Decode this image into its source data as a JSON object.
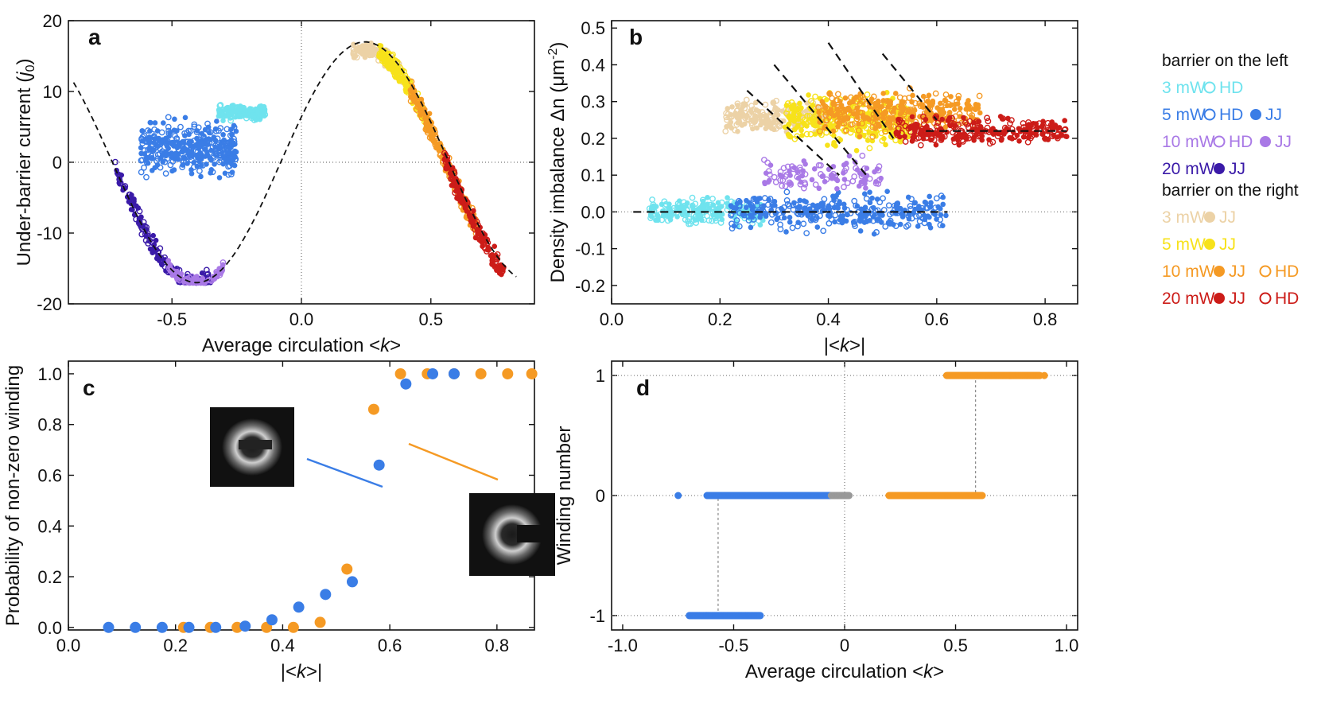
{
  "colors": {
    "cyan": "#6fe3ee",
    "blue": "#3a7de6",
    "lilac": "#a979e6",
    "navy": "#3a1aa8",
    "beige": "#ecd2a6",
    "yellow": "#f7e21a",
    "orange": "#f59a24",
    "red": "#cc1c18",
    "inset_blue": "#3a7de6",
    "inset_orange": "#f59a24",
    "grey": "#999999"
  },
  "chart_data": [
    {
      "panel": "a",
      "type": "scatter",
      "xlabel_pre": "Average circulation <",
      "xlabel_var": "k",
      "xlabel_post": ">",
      "ylabel_pre": "Under-barrier current (",
      "ylabel_var": "j",
      "ylabel_sub": "0",
      "ylabel_post": ")",
      "xlim": [
        -0.9,
        0.9
      ],
      "ylim": [
        -20,
        20
      ],
      "xticks": [
        "-0.5",
        "0.0",
        "0.5"
      ],
      "xtick_values": [
        -0.5,
        0.0,
        0.5
      ],
      "yticks": [
        "20",
        "10",
        "0",
        "-10",
        "-20"
      ],
      "ytick_values": [
        20,
        10,
        0,
        -10,
        -20
      ],
      "reference_curve": "dashed sinusoid, amplitude 17, period ~1.1, passing through (-0.85, 9) and minimum near (-0.4, -15)",
      "clusters": [
        {
          "color": "cyan",
          "x_range": [
            -0.32,
            -0.14
          ],
          "y_mean": 7,
          "y_spread": 1.5
        },
        {
          "color": "blue",
          "x_range": [
            -0.62,
            -0.25
          ],
          "y_mean": 2,
          "y_spread": 5
        },
        {
          "color": "navy",
          "x_range": [
            -0.72,
            -0.35
          ],
          "y_mean": -12,
          "y_spread": 2
        },
        {
          "color": "lilac",
          "x_range": [
            -0.52,
            -0.3
          ],
          "y_mean": -14,
          "y_spread": 1
        },
        {
          "color": "beige",
          "x_range": [
            0.2,
            0.4
          ],
          "y_mean": 15,
          "y_spread": 1.5
        },
        {
          "color": "yellow",
          "x_range": [
            0.3,
            0.5
          ],
          "y_mean": 11,
          "y_spread": 2
        },
        {
          "color": "orange",
          "x_range": [
            0.42,
            0.68
          ],
          "y_mean": 4,
          "y_spread": 2
        },
        {
          "color": "red",
          "x_range": [
            0.55,
            0.78
          ],
          "y_mean": 0,
          "y_spread": 2
        }
      ]
    },
    {
      "panel": "b",
      "type": "scatter",
      "xlabel_pre": "|<",
      "xlabel_var": "k",
      "xlabel_post": ">|",
      "ylabel_text": "Density imbalance Δn (μm",
      "ylabel_sup": "-2",
      "ylabel_post": ")",
      "xlim": [
        0.0,
        0.86
      ],
      "ylim": [
        -0.25,
        0.52
      ],
      "xticks": [
        "0.0",
        "0.2",
        "0.4",
        "0.6",
        "0.8"
      ],
      "xtick_values": [
        0.0,
        0.2,
        0.4,
        0.6,
        0.8
      ],
      "yticks": [
        "0.5",
        "0.4",
        "0.3",
        "0.2",
        "0.1",
        "0.0",
        "-0.1",
        "-0.2"
      ],
      "ytick_values": [
        0.5,
        0.4,
        0.3,
        0.2,
        0.1,
        0.0,
        -0.1,
        -0.2
      ],
      "clusters": [
        {
          "color": "cyan",
          "x_range": [
            0.07,
            0.28
          ],
          "y_mean": 0.0,
          "y_spread": 0.05
        },
        {
          "color": "blue",
          "x_range": [
            0.22,
            0.62
          ],
          "y_mean": 0.0,
          "y_spread": 0.07
        },
        {
          "color": "lilac",
          "x_range": [
            0.28,
            0.5
          ],
          "y_mean": 0.1,
          "y_spread": 0.06
        },
        {
          "color": "beige",
          "x_range": [
            0.21,
            0.4
          ],
          "y_mean": 0.26,
          "y_spread": 0.06
        },
        {
          "color": "yellow",
          "x_range": [
            0.32,
            0.55
          ],
          "y_mean": 0.25,
          "y_spread": 0.09
        },
        {
          "color": "orange",
          "x_range": [
            0.38,
            0.68
          ],
          "y_mean": 0.27,
          "y_spread": 0.08
        },
        {
          "color": "red",
          "x_range": [
            0.52,
            0.84
          ],
          "y_mean": 0.22,
          "y_spread": 0.05
        }
      ]
    },
    {
      "panel": "c",
      "type": "scatter",
      "xlabel_pre": "|<",
      "xlabel_var": "k",
      "xlabel_post": ">|",
      "ylabel_text": "Probability of non-zero winding",
      "xlim": [
        0.0,
        0.87
      ],
      "ylim": [
        -0.01,
        1.05
      ],
      "xticks": [
        "0.0",
        "0.2",
        "0.4",
        "0.6",
        "0.8"
      ],
      "xtick_values": [
        0.0,
        0.2,
        0.4,
        0.6,
        0.8
      ],
      "yticks": [
        "1.0",
        "0.8",
        "0.6",
        "0.4",
        "0.2",
        "0.0"
      ],
      "ytick_values": [
        1.0,
        0.8,
        0.6,
        0.4,
        0.2,
        0.0
      ],
      "series": [
        {
          "name": "blue",
          "x": [
            0.075,
            0.125,
            0.175,
            0.225,
            0.275,
            0.33,
            0.38,
            0.43,
            0.48,
            0.53,
            0.58,
            0.63,
            0.68,
            0.72
          ],
          "y": [
            0.0,
            0.0,
            0.0,
            0.0,
            0.0,
            0.005,
            0.03,
            0.08,
            0.13,
            0.18,
            0.64,
            0.96,
            1.0,
            1.0
          ]
        },
        {
          "name": "orange",
          "x": [
            0.215,
            0.265,
            0.315,
            0.37,
            0.42,
            0.47,
            0.52,
            0.57,
            0.62,
            0.67,
            0.72,
            0.77,
            0.82,
            0.865
          ],
          "y": [
            0.0,
            0.0,
            0.0,
            0.0,
            0.0,
            0.02,
            0.23,
            0.86,
            1.0,
            1.0,
            1.0,
            1.0,
            1.0,
            1.0
          ]
        }
      ]
    },
    {
      "panel": "d",
      "type": "scatter",
      "xlabel_pre": "Average circulation <",
      "xlabel_var": "k",
      "xlabel_post": ">",
      "ylabel_text": "Winding number",
      "xlim": [
        -1.05,
        1.05
      ],
      "ylim": [
        -1.12,
        1.12
      ],
      "xticks": [
        "-1.0",
        "-0.5",
        "0",
        "0.5",
        "1.0"
      ],
      "xtick_values": [
        -1.0,
        -0.5,
        0.0,
        0.5,
        1.0
      ],
      "yticks": [
        "1",
        "0",
        "-1"
      ],
      "ytick_values": [
        1,
        0,
        -1
      ],
      "bands": [
        {
          "color": "blue",
          "y": 0,
          "x_range": [
            -0.62,
            -0.05
          ]
        },
        {
          "color": "grey",
          "y": 0,
          "x_range": [
            -0.06,
            0.02
          ]
        },
        {
          "color": "blue",
          "y": -1,
          "x_range": [
            -0.7,
            -0.38
          ]
        },
        {
          "color": "orange",
          "y": 0,
          "x_range": [
            0.2,
            0.62
          ]
        },
        {
          "color": "orange",
          "y": 1,
          "x_range": [
            0.46,
            0.88
          ]
        }
      ],
      "outliers": [
        {
          "color": "blue",
          "x": -0.75,
          "y": 0
        },
        {
          "color": "orange",
          "x": 0.9,
          "y": 1
        }
      ],
      "thresholds": [
        -0.57,
        0.59
      ]
    }
  ],
  "panel_labels": [
    "a",
    "b",
    "c",
    "d"
  ],
  "legend": {
    "left_title": "barrier on the left",
    "right_title": "barrier on the right",
    "left_rows": [
      {
        "power": "3 mW",
        "color": "cyan",
        "items": [
          {
            "marker": "open",
            "text": "HD"
          }
        ]
      },
      {
        "power": "5 mW",
        "color": "blue",
        "items": [
          {
            "marker": "open",
            "text": "HD"
          },
          {
            "marker": "filled",
            "text": "JJ"
          }
        ]
      },
      {
        "power": "10 mW",
        "color": "lilac",
        "items": [
          {
            "marker": "open",
            "text": "HD"
          },
          {
            "marker": "filled",
            "text": "JJ"
          }
        ]
      },
      {
        "power": "20 mW",
        "color": "navy",
        "items": [
          {
            "marker": "filled",
            "text": "JJ"
          }
        ]
      }
    ],
    "right_rows": [
      {
        "power": "3 mW",
        "color": "beige",
        "items": [
          {
            "marker": "filled",
            "text": "JJ"
          }
        ]
      },
      {
        "power": "5 mW",
        "color": "yellow",
        "items": [
          {
            "marker": "filled",
            "text": "JJ"
          }
        ]
      },
      {
        "power": "10 mW",
        "color": "orange",
        "items": [
          {
            "marker": "filled",
            "text": "JJ"
          },
          {
            "marker": "open",
            "text": "HD"
          }
        ]
      },
      {
        "power": "20 mW",
        "color": "red",
        "items": [
          {
            "marker": "filled",
            "text": "JJ"
          },
          {
            "marker": "open",
            "text": "HD"
          }
        ]
      }
    ]
  }
}
